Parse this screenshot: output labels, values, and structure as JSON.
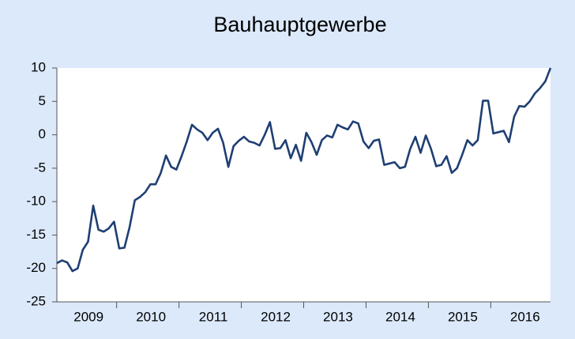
{
  "chart_data": {
    "type": "line",
    "title": "Bauhauptgewerbe",
    "categories": [
      null,
      null,
      null,
      null,
      null,
      "2009",
      null,
      null,
      null,
      null,
      null,
      null,
      null,
      null,
      null,
      null,
      null,
      "2010",
      null,
      null,
      null,
      null,
      null,
      null,
      null,
      null,
      null,
      null,
      null,
      "2011",
      null,
      null,
      null,
      null,
      null,
      null,
      null,
      null,
      null,
      null,
      null,
      "2012",
      null,
      null,
      null,
      null,
      null,
      null,
      null,
      null,
      null,
      null,
      null,
      "2013",
      null,
      null,
      null,
      null,
      null,
      null,
      null,
      null,
      null,
      null,
      null,
      "2014",
      null,
      null,
      null,
      null,
      null,
      null,
      null,
      null,
      null,
      null,
      null,
      "2015",
      null,
      null,
      null,
      null,
      null,
      null,
      null,
      null,
      null,
      null,
      null,
      "2016",
      null,
      null,
      null,
      null,
      null,
      null
    ],
    "values": [
      -19.2,
      -18.8,
      -19.1,
      -20.4,
      -20,
      -17.2,
      -16,
      -10.6,
      -14.2,
      -14.5,
      -14,
      -13,
      -17,
      -16.9,
      -13.8,
      -9.8,
      -9.3,
      -8.6,
      -7.4,
      -7.4,
      -5.7,
      -3.1,
      -4.8,
      -5.2,
      -3.2,
      -1,
      1.5,
      0.8,
      0.3,
      -0.8,
      0.3,
      0.9,
      -1.2,
      -4.8,
      -1.7,
      -0.9,
      -0.3,
      -1,
      -1.2,
      -1.6,
      0,
      1.9,
      -2.1,
      -2,
      -0.8,
      -3.5,
      -1.5,
      -3.9,
      0.3,
      -1.1,
      -3,
      -0.8,
      -0.1,
      -0.4,
      1.5,
      1.1,
      0.8,
      2,
      1.7,
      -1,
      -2,
      -0.9,
      -0.7,
      -4.5,
      -4.3,
      -4.1,
      -5,
      -4.8,
      -2.1,
      -0.3,
      -2.7,
      -0.1,
      -2.1,
      -4.7,
      -4.5,
      -3.2,
      -5.7,
      -5,
      -3,
      -0.8,
      -1.6,
      -0.8,
      5.1,
      5.1,
      0.2,
      0.4,
      0.6,
      -1.1,
      2.7,
      4.3,
      4.2,
      5,
      6.2,
      7,
      8,
      10
    ],
    "color": "#1f3f73",
    "ylim": [
      -25,
      10
    ],
    "yticks": [
      -25,
      -20,
      -15,
      -10,
      -5,
      0,
      5,
      10
    ],
    "grid": false
  }
}
